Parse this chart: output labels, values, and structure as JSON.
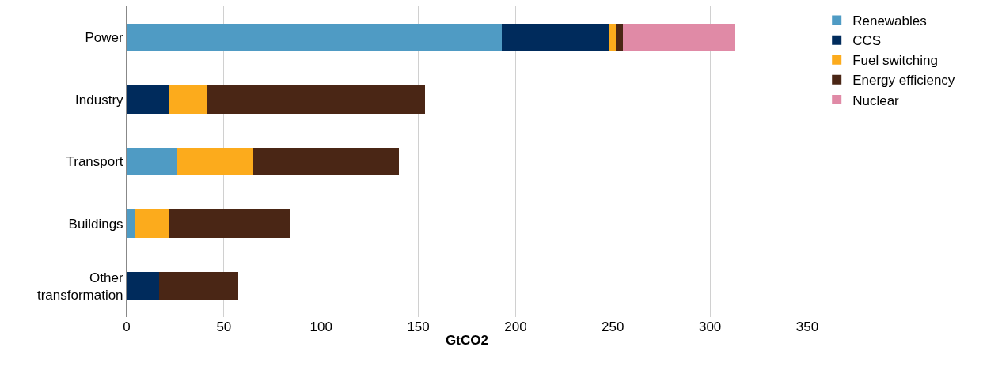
{
  "chart_data": {
    "type": "bar",
    "orientation": "horizontal",
    "stacked": true,
    "xlabel": "GtCO2",
    "categories": [
      "Power",
      "Industry",
      "Transport",
      "Buildings",
      "Other transformation"
    ],
    "series": [
      {
        "name": "Renewables",
        "color": "#4f9bc4",
        "values": [
          193,
          null,
          26,
          4.5,
          null
        ]
      },
      {
        "name": "CCS",
        "color": "#002b5c",
        "values": [
          55,
          22,
          null,
          null,
          16.5
        ]
      },
      {
        "name": "Fuel switching",
        "color": "#fcab1c",
        "values": [
          3.5,
          19.5,
          39,
          17,
          null
        ]
      },
      {
        "name": "Energy efficiency",
        "color": "#4a2615",
        "values": [
          3.5,
          112,
          75,
          62.5,
          41
        ]
      },
      {
        "name": "Nuclear",
        "color": "#e08aa6",
        "values": [
          58,
          null,
          null,
          null,
          null
        ]
      }
    ],
    "xlim": [
      0,
      350
    ],
    "xticks": [
      0,
      50,
      100,
      150,
      200,
      250,
      300,
      350
    ],
    "grid": "x",
    "legend": "top right"
  }
}
